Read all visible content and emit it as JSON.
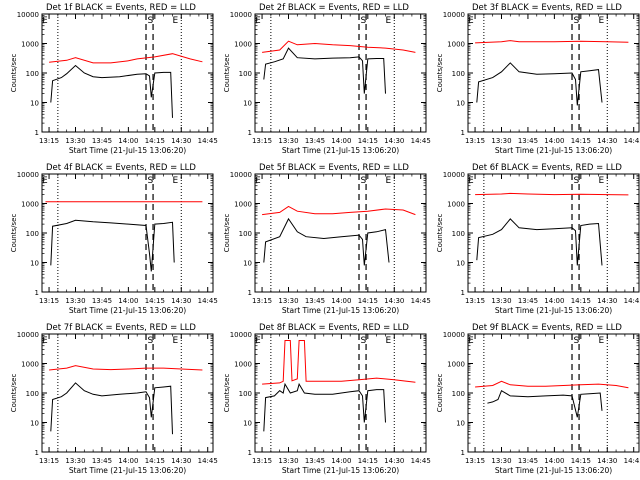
{
  "chart_data": {
    "type": "line",
    "layout": "3x3 grid",
    "ylabel": "Counts/sec",
    "xlabel": "Start Time (21-Jul-15 13:06:20)",
    "x_ticks": [
      "13:15",
      "13:30",
      "13:45",
      "14:00",
      "14:15",
      "14:30",
      "14:45"
    ],
    "y_ticks": [
      "1",
      "10",
      "100",
      "1000",
      "10000"
    ],
    "ylim": [
      1,
      10000
    ],
    "yscale": "log",
    "series_colors": {
      "events": "#000000",
      "lld": "#ff0000"
    },
    "panels": [
      {
        "title": "Det 1f BLACK = Events, RED = LLD",
        "markers": {
          "E1": "13:11",
          "S": "14:12",
          "E2": "14:25"
        },
        "dashed": [
          "14:10",
          "14:14"
        ],
        "dotted": [
          "13:20",
          "14:30"
        ],
        "events": [
          [
            "13:16",
            10
          ],
          [
            "13:17",
            55
          ],
          [
            "13:22",
            70
          ],
          [
            "13:25",
            95
          ],
          [
            "13:30",
            180
          ],
          [
            "13:35",
            100
          ],
          [
            "13:40",
            75
          ],
          [
            "13:45",
            70
          ],
          [
            "13:55",
            75
          ],
          [
            "14:05",
            90
          ],
          [
            "14:10",
            95
          ],
          [
            "14:12",
            80
          ],
          [
            "14:13",
            15
          ],
          [
            "14:15",
            100
          ],
          [
            "14:20",
            105
          ],
          [
            "14:24",
            105
          ],
          [
            "14:25",
            3
          ]
        ],
        "lld": [
          [
            "13:15",
            230
          ],
          [
            "13:25",
            270
          ],
          [
            "13:30",
            330
          ],
          [
            "13:40",
            220
          ],
          [
            "13:50",
            220
          ],
          [
            "14:00",
            260
          ],
          [
            "14:05",
            300
          ],
          [
            "14:15",
            350
          ],
          [
            "14:25",
            450
          ],
          [
            "14:35",
            300
          ],
          [
            "14:42",
            240
          ]
        ]
      },
      {
        "title": "Det 2f BLACK = Events, RED = LLD",
        "markers": {
          "E1": "13:11",
          "S": "14:12",
          "E2": "14:25"
        },
        "dashed": [
          "14:10",
          "14:14"
        ],
        "dotted": [
          "13:20",
          "14:30"
        ],
        "events": [
          [
            "13:16",
            60
          ],
          [
            "13:17",
            200
          ],
          [
            "13:22",
            240
          ],
          [
            "13:27",
            300
          ],
          [
            "13:30",
            700
          ],
          [
            "13:35",
            330
          ],
          [
            "13:45",
            300
          ],
          [
            "13:55",
            320
          ],
          [
            "14:05",
            330
          ],
          [
            "14:10",
            350
          ],
          [
            "14:12",
            260
          ],
          [
            "14:13",
            20
          ],
          [
            "14:15",
            300
          ],
          [
            "14:20",
            310
          ],
          [
            "14:24",
            310
          ],
          [
            "14:25",
            20
          ]
        ],
        "lld": [
          [
            "13:15",
            500
          ],
          [
            "13:25",
            600
          ],
          [
            "13:30",
            1200
          ],
          [
            "13:35",
            900
          ],
          [
            "13:45",
            1000
          ],
          [
            "13:55",
            900
          ],
          [
            "14:05",
            850
          ],
          [
            "14:15",
            750
          ],
          [
            "14:25",
            700
          ],
          [
            "14:35",
            600
          ],
          [
            "14:42",
            500
          ]
        ]
      },
      {
        "title": "Det 3f BLACK = Events, RED = LLD",
        "markers": {
          "E1": "13:11",
          "S": "14:12",
          "E2": "14:25"
        },
        "dashed": [
          "14:10",
          "14:14"
        ],
        "dotted": [
          "13:20",
          "14:30"
        ],
        "events": [
          [
            "13:16",
            10
          ],
          [
            "13:17",
            50
          ],
          [
            "13:25",
            70
          ],
          [
            "13:30",
            110
          ],
          [
            "13:35",
            220
          ],
          [
            "13:40",
            110
          ],
          [
            "13:50",
            90
          ],
          [
            "14:00",
            95
          ],
          [
            "14:10",
            100
          ],
          [
            "14:12",
            60
          ],
          [
            "14:13",
            8
          ],
          [
            "14:15",
            110
          ],
          [
            "14:20",
            120
          ],
          [
            "14:25",
            130
          ],
          [
            "14:27",
            10
          ]
        ],
        "lld": [
          [
            "13:15",
            1050
          ],
          [
            "13:30",
            1150
          ],
          [
            "13:35",
            1250
          ],
          [
            "13:40",
            1150
          ],
          [
            "14:00",
            1150
          ],
          [
            "14:15",
            1200
          ],
          [
            "14:30",
            1150
          ],
          [
            "14:42",
            1100
          ]
        ]
      },
      {
        "title": "Det 4f BLACK = Events, RED = LLD",
        "markers": {
          "E1": "13:11",
          "S": "14:12",
          "E2": "14:25"
        },
        "dashed": [
          "14:10",
          "14:14"
        ],
        "dotted": [
          "13:20",
          "14:30"
        ],
        "events": [
          [
            "13:16",
            8
          ],
          [
            "13:17",
            170
          ],
          [
            "13:25",
            210
          ],
          [
            "13:30",
            270
          ],
          [
            "13:40",
            240
          ],
          [
            "13:50",
            220
          ],
          [
            "14:00",
            200
          ],
          [
            "14:10",
            180
          ],
          [
            "14:12",
            20
          ],
          [
            "14:13",
            5
          ],
          [
            "14:15",
            200
          ],
          [
            "14:20",
            210
          ],
          [
            "14:25",
            230
          ],
          [
            "14:26",
            10
          ]
        ],
        "lld": [
          [
            "13:13",
            1150
          ],
          [
            "14:42",
            1150
          ]
        ]
      },
      {
        "title": "Det 5f BLACK = Events, RED = LLD",
        "markers": {
          "E1": "13:11",
          "S": "14:12",
          "E2": "14:25"
        },
        "dashed": [
          "14:10",
          "14:14"
        ],
        "dotted": [
          "13:20",
          "14:30"
        ],
        "events": [
          [
            "13:16",
            10
          ],
          [
            "13:17",
            50
          ],
          [
            "13:25",
            75
          ],
          [
            "13:30",
            300
          ],
          [
            "13:35",
            110
          ],
          [
            "13:40",
            75
          ],
          [
            "13:50",
            65
          ],
          [
            "14:00",
            75
          ],
          [
            "14:10",
            85
          ],
          [
            "14:12",
            60
          ],
          [
            "14:13",
            8
          ],
          [
            "14:15",
            100
          ],
          [
            "14:20",
            110
          ],
          [
            "14:25",
            130
          ],
          [
            "14:27",
            10
          ]
        ],
        "lld": [
          [
            "13:15",
            420
          ],
          [
            "13:25",
            500
          ],
          [
            "13:30",
            800
          ],
          [
            "13:35",
            550
          ],
          [
            "13:45",
            450
          ],
          [
            "13:55",
            450
          ],
          [
            "14:05",
            500
          ],
          [
            "14:15",
            550
          ],
          [
            "14:25",
            650
          ],
          [
            "14:35",
            600
          ],
          [
            "14:42",
            420
          ]
        ]
      },
      {
        "title": "Det 6f BLACK = Events, RED = LLD",
        "markers": {
          "E1": "13:11",
          "S": "14:12",
          "E2": "14:25"
        },
        "dashed": [
          "14:10",
          "14:14"
        ],
        "dotted": [
          "13:20",
          "14:30"
        ],
        "events": [
          [
            "13:16",
            12
          ],
          [
            "13:17",
            70
          ],
          [
            "13:25",
            90
          ],
          [
            "13:30",
            130
          ],
          [
            "13:35",
            300
          ],
          [
            "13:40",
            150
          ],
          [
            "13:50",
            130
          ],
          [
            "14:00",
            140
          ],
          [
            "14:10",
            150
          ],
          [
            "14:12",
            120
          ],
          [
            "14:13",
            8
          ],
          [
            "14:15",
            180
          ],
          [
            "14:20",
            200
          ],
          [
            "14:25",
            210
          ],
          [
            "14:27",
            8
          ]
        ],
        "lld": [
          [
            "13:15",
            2000
          ],
          [
            "13:30",
            2100
          ],
          [
            "13:35",
            2200
          ],
          [
            "13:45",
            2100
          ],
          [
            "14:00",
            2000
          ],
          [
            "14:15",
            2050
          ],
          [
            "14:30",
            2000
          ],
          [
            "14:42",
            1950
          ]
        ]
      },
      {
        "title": "Det 7f BLACK = Events, RED = LLD",
        "markers": {
          "E1": "13:11",
          "S": "14:12",
          "E2": "14:25"
        },
        "dashed": [
          "14:10",
          "14:14"
        ],
        "dotted": [
          "13:20",
          "14:30"
        ],
        "events": [
          [
            "13:16",
            5
          ],
          [
            "13:17",
            60
          ],
          [
            "13:22",
            75
          ],
          [
            "13:25",
            100
          ],
          [
            "13:30",
            220
          ],
          [
            "13:35",
            120
          ],
          [
            "13:40",
            90
          ],
          [
            "13:45",
            80
          ],
          [
            "13:55",
            90
          ],
          [
            "14:05",
            100
          ],
          [
            "14:10",
            110
          ],
          [
            "14:12",
            70
          ],
          [
            "14:13",
            15
          ],
          [
            "14:15",
            150
          ],
          [
            "14:20",
            160
          ],
          [
            "14:24",
            170
          ],
          [
            "14:25",
            4
          ]
        ],
        "lld": [
          [
            "13:15",
            600
          ],
          [
            "13:25",
            700
          ],
          [
            "13:30",
            850
          ],
          [
            "13:40",
            650
          ],
          [
            "13:50",
            620
          ],
          [
            "14:00",
            650
          ],
          [
            "14:10",
            700
          ],
          [
            "14:20",
            700
          ],
          [
            "14:30",
            650
          ],
          [
            "14:42",
            600
          ]
        ]
      },
      {
        "title": "Det 8f BLACK = Events, RED = LLD",
        "markers": {
          "E1": "13:11",
          "S": "14:12",
          "E2": "14:25"
        },
        "dashed": [
          "14:10",
          "14:14"
        ],
        "dotted": [
          "13:20",
          "14:30"
        ],
        "events": [
          [
            "13:16",
            5
          ],
          [
            "13:17",
            70
          ],
          [
            "13:22",
            80
          ],
          [
            "13:25",
            120
          ],
          [
            "13:27",
            100
          ],
          [
            "13:28",
            200
          ],
          [
            "13:31",
            100
          ],
          [
            "13:35",
            120
          ],
          [
            "13:36",
            200
          ],
          [
            "13:39",
            100
          ],
          [
            "13:45",
            90
          ],
          [
            "13:55",
            90
          ],
          [
            "14:05",
            110
          ],
          [
            "14:10",
            120
          ],
          [
            "14:12",
            80
          ],
          [
            "14:13",
            10
          ],
          [
            "14:15",
            120
          ],
          [
            "14:20",
            130
          ],
          [
            "14:24",
            130
          ],
          [
            "14:25",
            10
          ]
        ],
        "lld": [
          [
            "13:15",
            200
          ],
          [
            "13:25",
            220
          ],
          [
            "13:27",
            250
          ],
          [
            "13:28",
            6000
          ],
          [
            "13:31",
            6000
          ],
          [
            "13:32",
            260
          ],
          [
            "13:35",
            300
          ],
          [
            "13:36",
            6000
          ],
          [
            "13:39",
            6000
          ],
          [
            "13:40",
            250
          ],
          [
            "13:50",
            250
          ],
          [
            "14:00",
            250
          ],
          [
            "14:10",
            280
          ],
          [
            "14:20",
            320
          ],
          [
            "14:30",
            280
          ],
          [
            "14:42",
            230
          ]
        ]
      },
      {
        "title": "Det 9f BLACK = Events, RED = LLD",
        "markers": {
          "E1": "13:11",
          "S": "14:12",
          "E2": "14:25"
        },
        "dashed": [
          "14:10",
          "14:14"
        ],
        "dotted": [
          "13:20",
          "14:30"
        ],
        "events": [
          [
            "13:22",
            45
          ],
          [
            "13:25",
            50
          ],
          [
            "13:28",
            60
          ],
          [
            "13:30",
            120
          ],
          [
            "13:35",
            80
          ],
          [
            "13:45",
            75
          ],
          [
            "13:55",
            80
          ],
          [
            "14:05",
            85
          ],
          [
            "14:10",
            80
          ],
          [
            "14:13",
            15
          ],
          [
            "14:15",
            90
          ],
          [
            "14:20",
            95
          ],
          [
            "14:26",
            100
          ],
          [
            "14:27",
            25
          ]
        ],
        "lld": [
          [
            "13:15",
            160
          ],
          [
            "13:25",
            180
          ],
          [
            "13:30",
            250
          ],
          [
            "13:35",
            190
          ],
          [
            "13:45",
            170
          ],
          [
            "13:55",
            170
          ],
          [
            "14:05",
            180
          ],
          [
            "14:15",
            190
          ],
          [
            "14:25",
            200
          ],
          [
            "14:35",
            180
          ],
          [
            "14:42",
            150
          ]
        ]
      }
    ]
  }
}
